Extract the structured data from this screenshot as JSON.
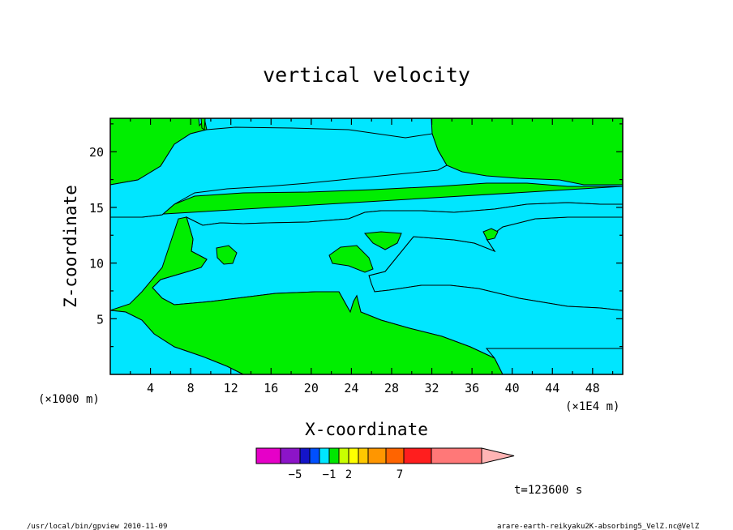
{
  "chart_data": {
    "type": "contour",
    "title": "vertical velocity",
    "xlabel": "X-coordinate",
    "ylabel": "Z-coordinate",
    "x_unit": "(×1E4 m)",
    "y_unit": "(×1000 m)",
    "xlim": [
      0,
      51
    ],
    "ylim": [
      0,
      23
    ],
    "x_ticks": [
      4,
      8,
      12,
      16,
      20,
      24,
      28,
      32,
      36,
      40,
      44,
      48
    ],
    "y_ticks": [
      5,
      10,
      15,
      20
    ],
    "x_minor_step": 2,
    "y_minor_step": 2.5,
    "fill_levels": [
      {
        "name": "negative",
        "color": "#00e6ff"
      },
      {
        "name": "positive",
        "color": "#00ee00"
      }
    ],
    "colorbar": {
      "colors": [
        "#e600c8",
        "#8c14c8",
        "#1414c8",
        "#0050ff",
        "#00e6ff",
        "#00e600",
        "#c8ff00",
        "#ffff00",
        "#ffc800",
        "#ff9600",
        "#ff6400",
        "#ff1e1e",
        "#ff7878",
        "#ffb4b4"
      ],
      "labels": [
        {
          "text": "−5",
          "box": 1
        },
        {
          "text": "−1",
          "box": 4
        },
        {
          "text": "2",
          "box": 6
        },
        {
          "text": "7",
          "box": 10
        }
      ]
    },
    "time_label": "t=123600 s",
    "footer_left": "/usr/local/bin/gpview  2010-11-09",
    "footer_right": "arare-earth-reikyaku2K-absorbing5_VelZ.nc@VelZ"
  }
}
